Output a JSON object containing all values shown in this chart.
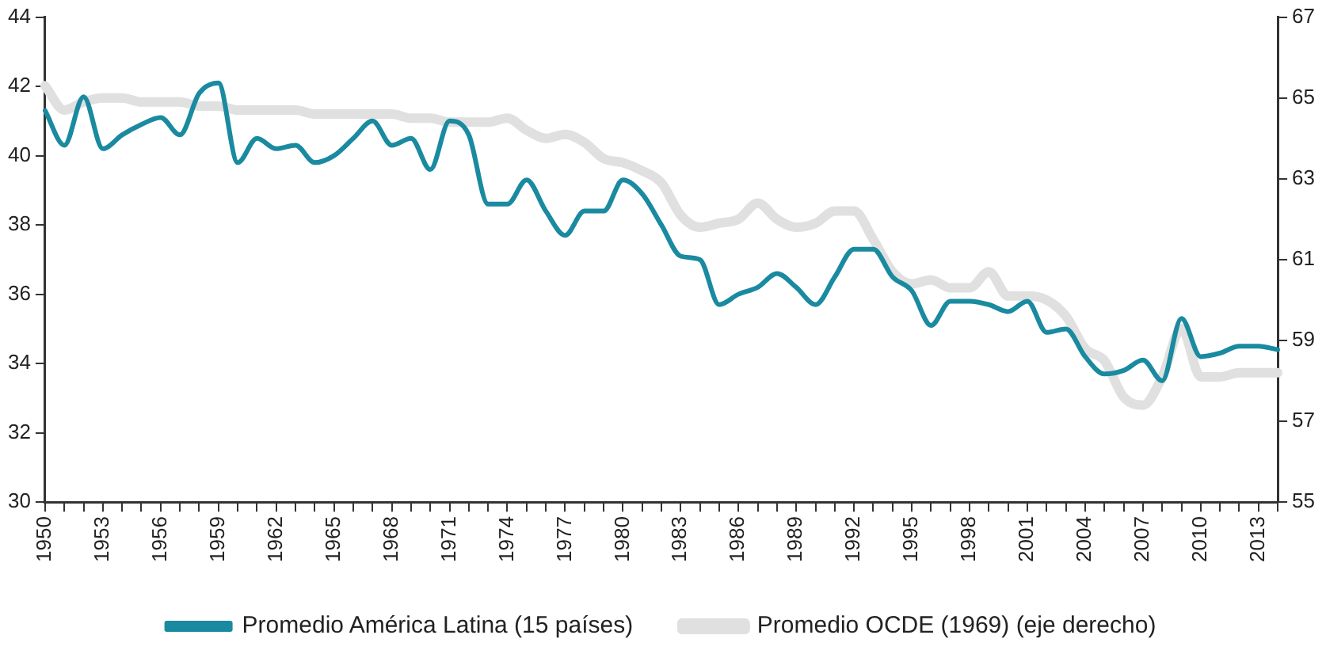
{
  "chart_data": {
    "type": "line",
    "categories": [
      "1950",
      null,
      null,
      "1953",
      null,
      null,
      "1956",
      null,
      null,
      "1959",
      null,
      null,
      "1962",
      null,
      null,
      "1965",
      null,
      null,
      "1968",
      null,
      null,
      "1971",
      null,
      null,
      "1974",
      null,
      null,
      "1977",
      null,
      null,
      "1980",
      null,
      null,
      "1983",
      null,
      null,
      "1986",
      null,
      null,
      "1989",
      null,
      null,
      "1992",
      null,
      null,
      "1995",
      null,
      null,
      "1998",
      null,
      null,
      "2001",
      null,
      null,
      "2004",
      null,
      null,
      "2007",
      null,
      null,
      "2010",
      null,
      null,
      "2013",
      null
    ],
    "series": [
      {
        "name": "Promedio América Latina (15 países)",
        "color": "#1a8aa0",
        "values": [
          41.3,
          40.3,
          41.7,
          40.2,
          40.6,
          40.9,
          41.1,
          40.6,
          41.8,
          42.1,
          39.8,
          40.5,
          40.2,
          40.3,
          39.8,
          40.0,
          40.5,
          41.0,
          40.3,
          40.5,
          39.6,
          41.0,
          40.6,
          38.6,
          38.6,
          39.3,
          38.4,
          37.7,
          38.4,
          38.4,
          39.3,
          38.9,
          38.0,
          37.1,
          37.0,
          35.7,
          36.0,
          36.2,
          36.6,
          36.2,
          35.7,
          36.5,
          37.3,
          37.3,
          36.5,
          36.1,
          35.1,
          35.8,
          35.8,
          35.7,
          35.5,
          35.8,
          34.9,
          35.0,
          34.2,
          33.7,
          33.8,
          34.1,
          33.5,
          35.3,
          34.2,
          34.3,
          34.5,
          34.5,
          34.4
        ]
      },
      {
        "name": "Promedio OCDE (1969) (eje derecho)",
        "color": "#e0e0e0",
        "axis": "y2",
        "values": [
          65.3,
          64.7,
          64.9,
          65.0,
          65.0,
          64.9,
          64.9,
          64.9,
          64.8,
          64.8,
          64.7,
          64.7,
          64.7,
          64.7,
          64.6,
          64.6,
          64.6,
          64.6,
          64.6,
          64.5,
          64.5,
          64.4,
          64.4,
          64.4,
          64.5,
          64.2,
          64.0,
          64.1,
          63.9,
          63.5,
          63.4,
          63.2,
          62.9,
          62.1,
          61.8,
          61.9,
          62.0,
          62.4,
          62.0,
          61.8,
          61.9,
          62.2,
          62.2,
          61.5,
          60.7,
          60.4,
          60.5,
          60.3,
          60.3,
          60.7,
          60.1,
          60.1,
          60.0,
          59.6,
          58.8,
          58.5,
          57.6,
          57.4,
          58.1,
          59.3,
          58.1,
          58.1,
          58.2,
          58.2,
          58.2
        ]
      }
    ],
    "ylim": [
      30,
      44
    ],
    "yticks": [
      30,
      32,
      34,
      36,
      38,
      40,
      42,
      44
    ],
    "y2lim": [
      55,
      67
    ],
    "y2ticks": [
      55,
      57,
      59,
      61,
      63,
      65,
      67
    ],
    "grid": false,
    "legend": "bottom",
    "marker": "none",
    "line_style": "solid"
  }
}
